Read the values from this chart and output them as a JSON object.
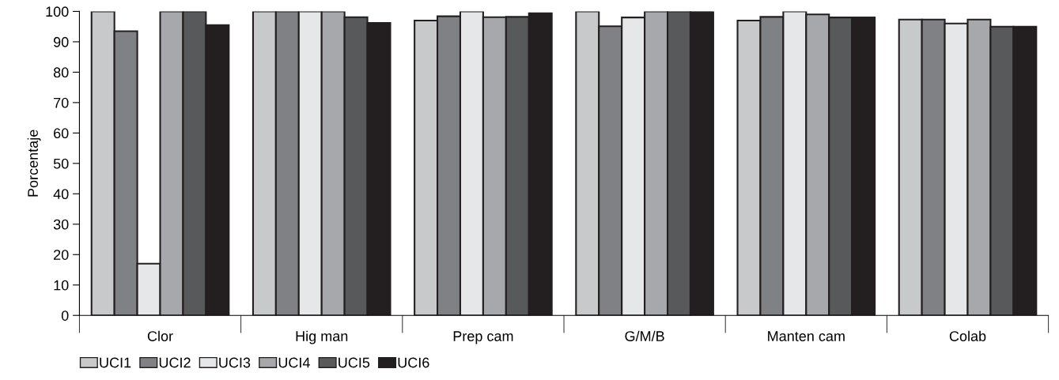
{
  "chart_data": {
    "type": "bar",
    "ylabel": "Porcentaje",
    "categories": [
      "Clor",
      "Hig man",
      "Prep cam",
      "G/M/B",
      "Manten cam",
      "Colab"
    ],
    "series": [
      {
        "name": "UCI1",
        "color": "#c8c9cb",
        "values": [
          100,
          100,
          97,
          100,
          97,
          97.3
        ]
      },
      {
        "name": "UCI2",
        "color": "#808184",
        "values": [
          93.5,
          100,
          98.4,
          95.1,
          98.2,
          97.3
        ]
      },
      {
        "name": "UCI3",
        "color": "#e6e7e8",
        "values": [
          17,
          100,
          100,
          98,
          100,
          96
        ]
      },
      {
        "name": "UCI4",
        "color": "#a7a8ab",
        "values": [
          100,
          100,
          98.1,
          100,
          99,
          97.3
        ]
      },
      {
        "name": "UCI5",
        "color": "#58595b",
        "values": [
          100,
          98.1,
          98.2,
          100,
          98,
          95
        ]
      },
      {
        "name": "UCI6",
        "color": "#231f20",
        "values": [
          95.5,
          96.2,
          99.4,
          100,
          98,
          95
        ]
      }
    ],
    "ylim": [
      0,
      100
    ],
    "yticks": [
      0,
      10,
      20,
      30,
      40,
      50,
      60,
      70,
      80,
      90,
      100
    ],
    "grid": false,
    "legend": "bottom left"
  }
}
